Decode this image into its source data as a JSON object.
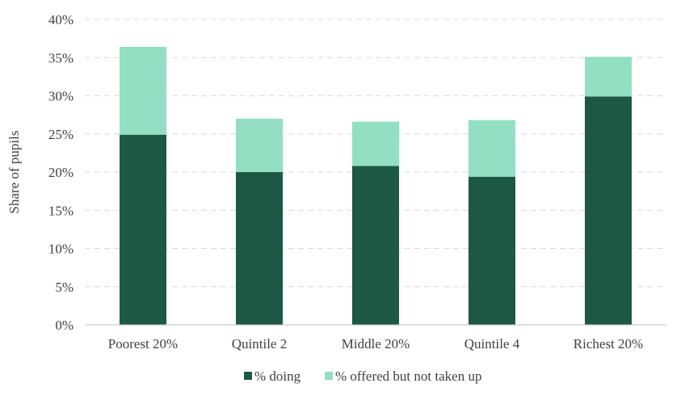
{
  "chart_data": {
    "type": "bar",
    "stacked": true,
    "categories": [
      "Poorest 20%",
      "Quintile 2",
      "Middle 20%",
      "Quintile 4",
      "Richest 20%"
    ],
    "series": [
      {
        "name": "% doing",
        "values": [
          24.9,
          20.0,
          20.8,
          19.4,
          29.9
        ],
        "color": "#1c5843"
      },
      {
        "name": "% offered but not taken up",
        "values": [
          11.5,
          7.0,
          5.8,
          7.4,
          5.2
        ],
        "color": "#93dfc3"
      }
    ],
    "ylabel": "Share of pupils",
    "xlabel": "",
    "ylim": [
      0,
      40
    ],
    "yticks": [
      0,
      5,
      10,
      15,
      20,
      25,
      30,
      35,
      40
    ],
    "ytick_suffix": "%",
    "grid": true,
    "legend_position": "bottom"
  }
}
